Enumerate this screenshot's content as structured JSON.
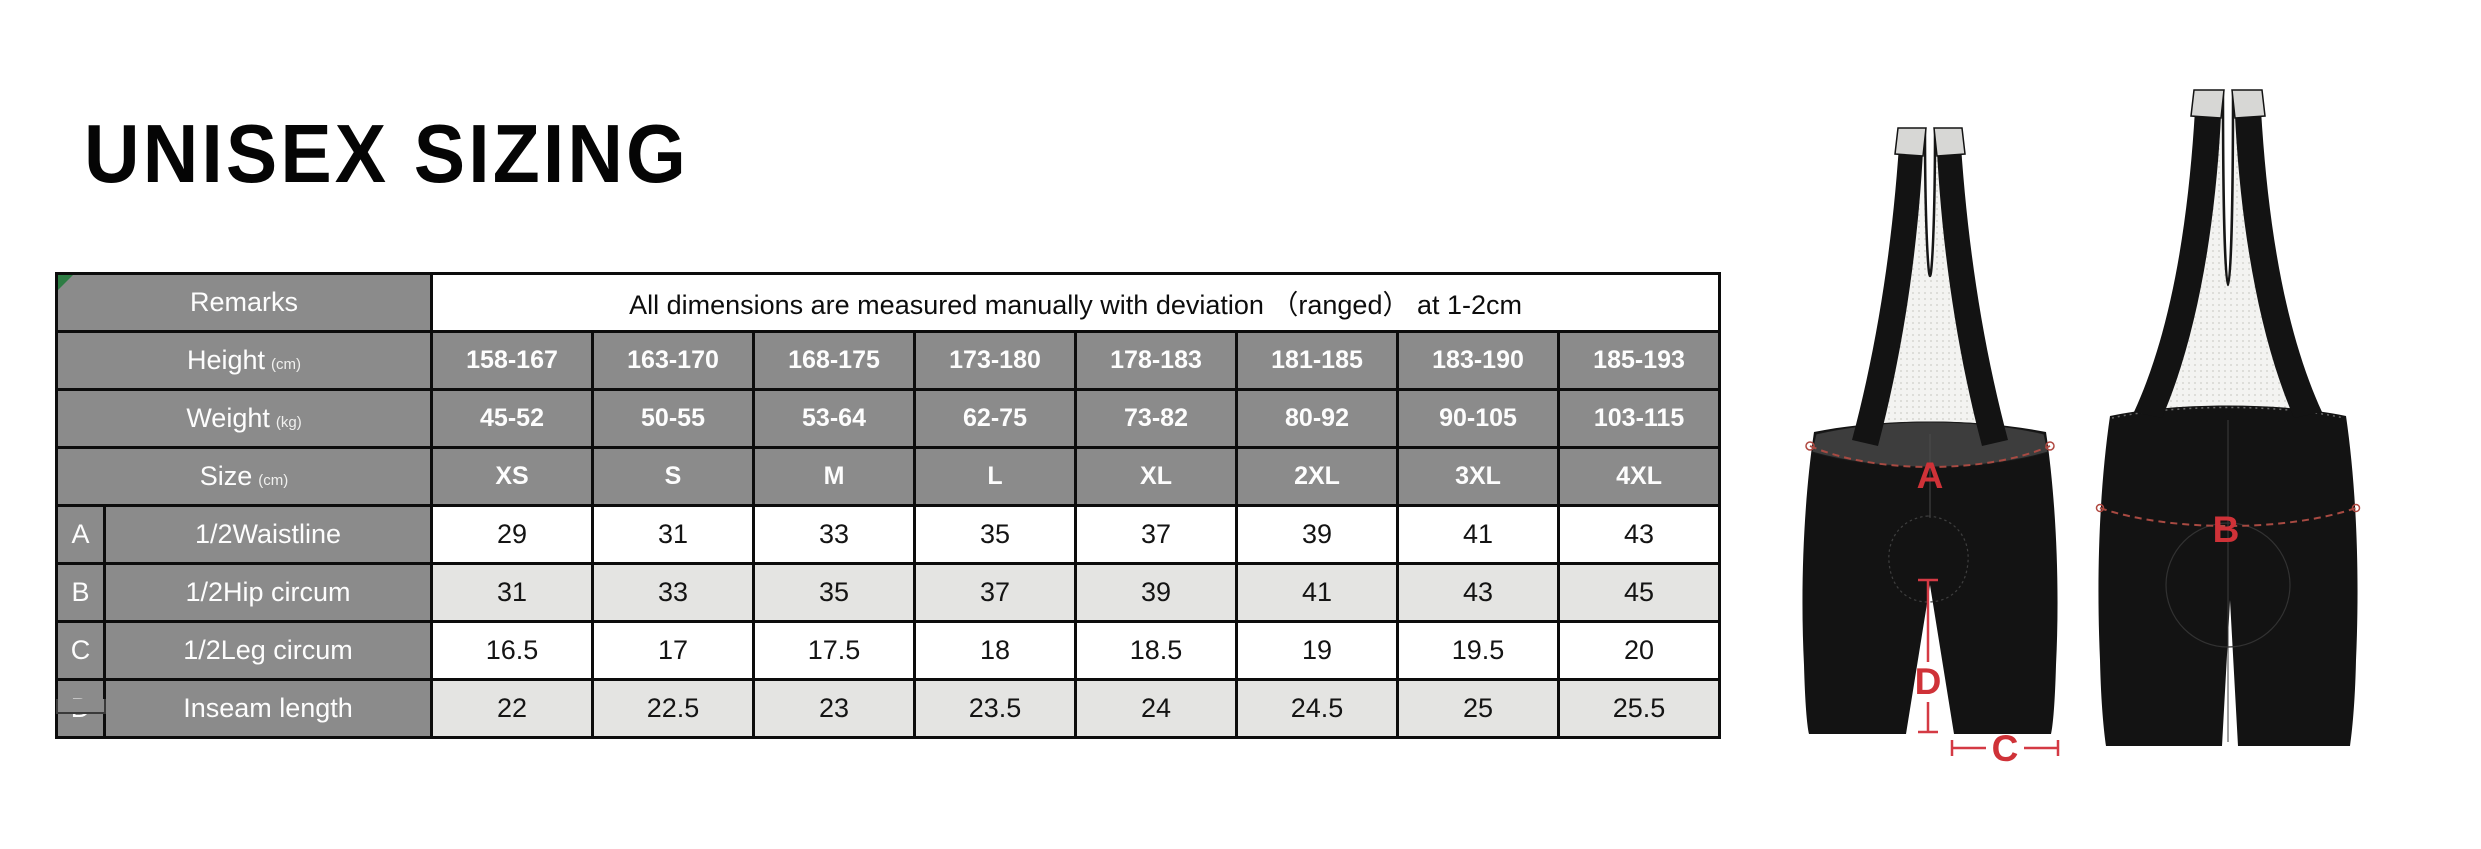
{
  "page": {
    "title": "UNISEX SIZING"
  },
  "colors": {
    "header_gray": "#8b8b8b",
    "row_shade": "#e4e4e2",
    "border": "#0c0c0c",
    "accent_red": "#cf3238",
    "marker_green": "#2e7d44"
  },
  "table": {
    "remarks": {
      "label": "Remarks",
      "value": "All dimensions are measured manually with deviation （ranged） at 1-2cm"
    },
    "header_rows": [
      {
        "key": "height",
        "label": "Height",
        "unit": "(cm)",
        "values": [
          "158-167",
          "163-170",
          "168-175",
          "173-180",
          "178-183",
          "181-185",
          "183-190",
          "185-193"
        ]
      },
      {
        "key": "weight",
        "label": "Weight",
        "unit": "(kg)",
        "values": [
          "45-52",
          "50-55",
          "53-64",
          "62-75",
          "73-82",
          "80-92",
          "90-105",
          "103-115"
        ]
      },
      {
        "key": "size",
        "label": "Size",
        "unit": "(cm)",
        "values": [
          "XS",
          "S",
          "M",
          "L",
          "XL",
          "2XL",
          "3XL",
          "4XL"
        ]
      }
    ],
    "measure_rows": [
      {
        "letter": "A",
        "label": "1/2Waistline",
        "values": [
          "29",
          "31",
          "33",
          "35",
          "37",
          "39",
          "41",
          "43"
        ]
      },
      {
        "letter": "B",
        "label": "1/2Hip circum",
        "values": [
          "31",
          "33",
          "35",
          "37",
          "39",
          "41",
          "43",
          "45"
        ]
      },
      {
        "letter": "C",
        "label": "1/2Leg circum",
        "values": [
          "16.5",
          "17",
          "17.5",
          "18",
          "18.5",
          "19",
          "19.5",
          "20"
        ]
      },
      {
        "letter": "D",
        "label": "Inseam length",
        "values": [
          "22",
          "22.5",
          "23",
          "23.5",
          "24",
          "24.5",
          "25",
          "25.5"
        ]
      }
    ]
  },
  "diagram": {
    "front": {
      "waist_label": "A",
      "inseam_label": "D",
      "leg_label": "C"
    },
    "back": {
      "hip_label": "B"
    }
  }
}
